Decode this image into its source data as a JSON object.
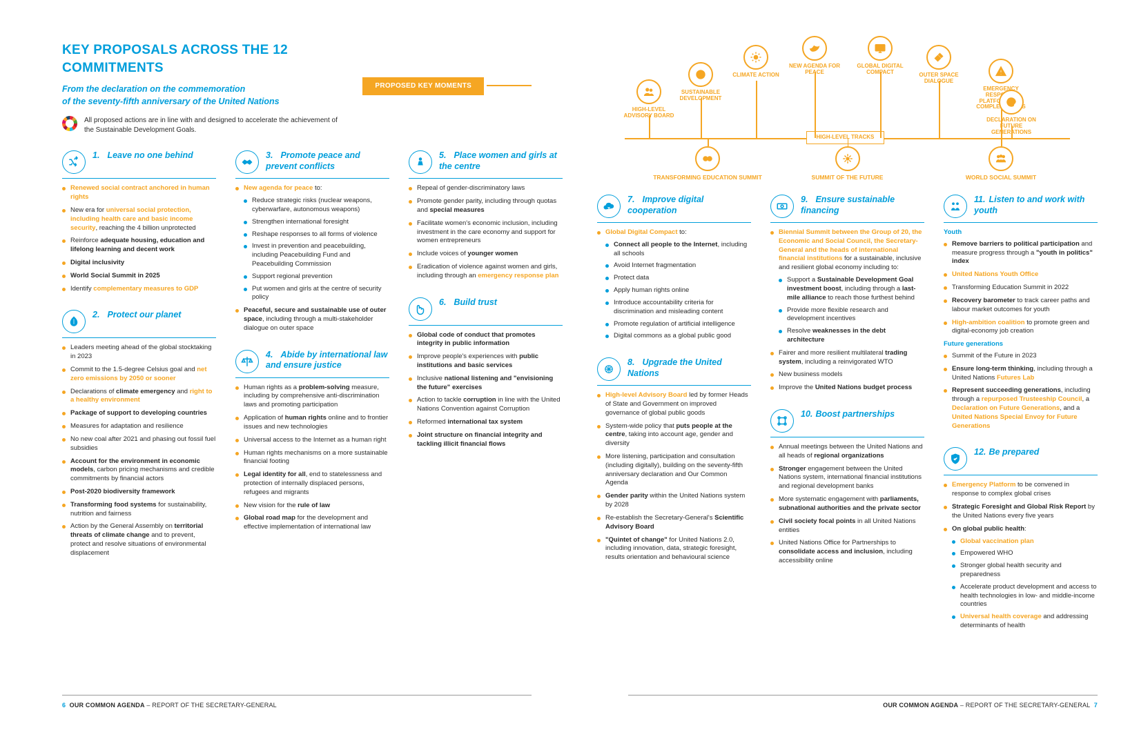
{
  "colors": {
    "blue": "#009edb",
    "orange": "#f5a623",
    "text": "#2a2a2a",
    "bg": "#ffffff"
  },
  "header": {
    "title": "KEY PROPOSALS ACROSS THE 12 COMMITMENTS",
    "subtitle_l1": "From the declaration on the commemoration",
    "subtitle_l2": "of the seventy-fifth anniversary of the United Nations",
    "sdg_note": "All proposed actions are in line with and designed to accelerate the achievement of the Sustainable Development Goals.",
    "moments_label": "PROPOSED KEY MOMENTS"
  },
  "diagram": {
    "track_label": "HIGH-LEVEL TRACKS",
    "top_nodes": [
      {
        "label": "HIGH-LEVEL ADVISORY BOARD",
        "icon": "people"
      },
      {
        "label": "SUSTAINABLE DEVELOPMENT",
        "icon": "globe"
      },
      {
        "label": "CLIMATE ACTION",
        "icon": "sun"
      },
      {
        "label": "NEW AGENDA FOR PEACE",
        "icon": "dove"
      },
      {
        "label": "GLOBAL DIGITAL COMPACT",
        "icon": "screen"
      },
      {
        "label": "OUTER SPACE DIALOGUE",
        "icon": "satellite"
      },
      {
        "label": "EMERGENCY RESPONSE PLATFORM FOR COMPLEX CRISES",
        "icon": "alert"
      },
      {
        "label": "DECLARATION ON FUTURE GENERATIONS",
        "icon": "cycle"
      }
    ],
    "bottom_nodes": [
      {
        "label": "TRANSFORMING EDUCATION SUMMIT",
        "icon": "link"
      },
      {
        "label": "SUMMIT OF THE FUTURE",
        "icon": "burst"
      },
      {
        "label": "WORLD SOCIAL SUMMIT",
        "icon": "group"
      }
    ]
  },
  "commitments": [
    {
      "num": "1.",
      "title": "Leave no one behind",
      "icon": "shuffle",
      "items": [
        {
          "html": "<span class='orange'>Renewed social contract anchored in human rights</span>"
        },
        {
          "html": "New era for <span class='orange'>universal social protection, including health care and basic income security</span>, reaching the 4 billion unprotected"
        },
        {
          "html": "Reinforce <b>adequate housing, education and lifelong learning and decent work</b>"
        },
        {
          "html": "<b>Digital inclusivity</b>"
        },
        {
          "html": "<b>World Social Summit in 2025</b>"
        },
        {
          "html": "Identify <span class='orange'>complementary measures to GDP</span>"
        }
      ]
    },
    {
      "num": "2.",
      "title": "Protect our planet",
      "icon": "leaf",
      "items": [
        {
          "html": "Leaders meeting ahead of the global stocktaking in 2023"
        },
        {
          "html": "Commit to the 1.5-degree Celsius goal and <span class='orange'>net zero emissions by 2050 or sooner</span>"
        },
        {
          "html": "Declarations of <b>climate emergency</b> and <span class='orange'>right to a healthy environment</span>"
        },
        {
          "html": "<b>Package of support to developing countries</b>"
        },
        {
          "html": "Measures for adaptation and resilience"
        },
        {
          "html": "No new coal after 2021 and phasing out fossil fuel subsidies"
        },
        {
          "html": "<b>Account for the environment in economic models</b>, carbon pricing mechanisms and credible commitments by financial actors"
        },
        {
          "html": "<b>Post-2020 biodiversity framework</b>"
        },
        {
          "html": "<b>Transforming food systems</b> for sustainability, nutrition and fairness"
        },
        {
          "html": "Action by the General Assembly on <b>territorial threats of climate change</b> and to prevent, protect and resolve situations of environmental displacement"
        }
      ]
    },
    {
      "num": "3.",
      "title": "Promote peace and prevent conflicts",
      "icon": "handshake",
      "items": [
        {
          "html": "<span class='orange'>New agenda for peace</span> to:",
          "sub": [
            {
              "html": "Reduce strategic risks (nuclear weapons, cyberwarfare, autonomous weapons)"
            },
            {
              "html": "Strengthen international foresight"
            },
            {
              "html": "Reshape responses to all forms of violence"
            },
            {
              "html": "Invest in prevention and peacebuilding, including Peacebuilding Fund and Peacebuilding Commission"
            },
            {
              "html": "Support regional prevention"
            },
            {
              "html": "Put women and girls at the centre of security policy"
            }
          ]
        },
        {
          "html": "<b>Peaceful, secure and sustainable use of outer space</b>, including through a multi-stakeholder dialogue on outer space"
        }
      ]
    },
    {
      "num": "4.",
      "title": "Abide by international law and ensure justice",
      "icon": "scale",
      "items": [
        {
          "html": "Human rights as a <b>problem-solving</b> measure, including by comprehensive anti-discrimination laws and promoting participation"
        },
        {
          "html": "Application of <b>human rights</b> online and to frontier issues and new technologies"
        },
        {
          "html": "Universal access to the Internet as a human right"
        },
        {
          "html": "Human rights mechanisms on a more sustainable financial footing"
        },
        {
          "html": "<b>Legal identity for all</b>, end to statelessness and protection of internally displaced persons, refugees and migrants"
        },
        {
          "html": "New vision for the <b>rule of law</b>"
        },
        {
          "html": "<b>Global road map</b> for the development and effective implementation of international law"
        }
      ]
    },
    {
      "num": "5.",
      "title": "Place women and girls at the centre",
      "icon": "female",
      "items": [
        {
          "html": "Repeal of gender-discriminatory laws"
        },
        {
          "html": "Promote gender parity, including through quotas and <b>special measures</b>"
        },
        {
          "html": "Facilitate women's economic inclusion, including investment in the care economy and support for women entrepreneurs"
        },
        {
          "html": "Include voices of <b>younger women</b>"
        },
        {
          "html": "Eradication of violence against women and girls, including through an <span class='orange'>emergency response plan</span>"
        }
      ]
    },
    {
      "num": "6.",
      "title": "Build trust",
      "icon": "hand",
      "items": [
        {
          "html": "<b>Global code of conduct that promotes integrity in public information</b>"
        },
        {
          "html": "Improve people's experiences with <b>public institutions and basic services</b>"
        },
        {
          "html": "Inclusive <b>national listening and \"envisioning the future\" exercises</b>"
        },
        {
          "html": "Action to tackle <b>corruption</b> in line with the United Nations Convention against Corruption"
        },
        {
          "html": "Reformed <b>international tax system</b>"
        },
        {
          "html": "<b>Joint structure on financial integrity and tackling illicit financial flows</b>"
        }
      ]
    },
    {
      "num": "7.",
      "title": "Improve digital cooperation",
      "icon": "cloud",
      "items": [
        {
          "html": "<span class='orange'>Global Digital Compact</span> to:",
          "sub": [
            {
              "html": "<b>Connect all people to the Internet</b>, including all schools"
            },
            {
              "html": "Avoid Internet fragmentation"
            },
            {
              "html": "Protect data"
            },
            {
              "html": "Apply human rights online"
            },
            {
              "html": "Introduce accountability criteria for discrimination and misleading content"
            },
            {
              "html": "Promote regulation of artificial intelligence"
            },
            {
              "html": "Digital commons as a global public good"
            }
          ]
        }
      ]
    },
    {
      "num": "8.",
      "title": "Upgrade the United Nations",
      "icon": "un",
      "items": [
        {
          "html": "<span class='orange'>High-level Advisory Board</span> led by former Heads of State and Government on improved governance of global public goods"
        },
        {
          "html": "System-wide policy that <b>puts people at the centre</b>, taking into account age, gender and diversity"
        },
        {
          "html": "More listening, participation and consultation (including digitally), building on the seventy-fifth anniversary declaration and Our Common Agenda"
        },
        {
          "html": "<b>Gender parity</b> within the United Nations system by 2028"
        },
        {
          "html": "Re-establish the Secretary-General's <b>Scientific Advisory Board</b>"
        },
        {
          "html": "<b>\"Quintet of change\"</b> for United Nations 2.0, including innovation, data, strategic foresight, results orientation and behavioural science"
        }
      ]
    },
    {
      "num": "9.",
      "title": "Ensure sustainable financing",
      "icon": "money",
      "items": [
        {
          "html": "<span class='orange'>Biennial Summit between the Group of 20, the Economic and Social Council, the Secretary-General and the heads of international financial institutions</span> for a sustainable, inclusive and resilient global economy including to:",
          "sub": [
            {
              "html": "Support a <b>Sustainable Development Goal investment boost</b>, including through a <b>last-mile alliance</b> to reach those furthest behind"
            },
            {
              "html": "Provide more flexible research and development incentives"
            },
            {
              "html": "Resolve <b>weaknesses in the debt architecture</b>"
            }
          ]
        },
        {
          "html": "Fairer and more resilient multilateral <b>trading system</b>, including a reinvigorated WTO"
        },
        {
          "html": "New business models"
        },
        {
          "html": "Improve the <b>United Nations budget process</b>"
        }
      ]
    },
    {
      "num": "10.",
      "title": "Boost partnerships",
      "icon": "network",
      "items": [
        {
          "html": "Annual meetings between the United Nations and all heads of <b>regional organizations</b>"
        },
        {
          "html": "<b>Stronger</b> engagement between the United Nations system, international financial institutions and regional development banks"
        },
        {
          "html": "More systematic engagement with <b>parliaments, subnational authorities and the private sector</b>"
        },
        {
          "html": "<b>Civil society focal points</b> in all United Nations entities"
        },
        {
          "html": "United Nations Office for Partnerships to <b>consolidate access and inclusion</b>, including accessibility online"
        }
      ]
    },
    {
      "num": "11.",
      "title": "Listen to and work with youth",
      "icon": "youth",
      "sections": [
        {
          "heading": "Youth",
          "items": [
            {
              "html": "<b>Remove barriers to political participation</b> and measure progress through a <b>\"youth in politics\" index</b>"
            },
            {
              "html": "<span class='orange'>United Nations Youth Office</span>"
            },
            {
              "html": "Transforming Education Summit in 2022"
            },
            {
              "html": "<b>Recovery barometer</b> to track career paths and labour market outcomes for youth"
            },
            {
              "html": "<span class='orange'>High-ambition coalition</span> to promote green and digital-economy job creation"
            }
          ]
        },
        {
          "heading": "Future generations",
          "items": [
            {
              "html": "Summit of the Future in 2023"
            },
            {
              "html": "<b>Ensure long-term thinking</b>, including through a United Nations <span class='orange'>Futures Lab</span>"
            },
            {
              "html": "<b>Represent succeeding generations</b>, including through a <span class='orange'>repurposed Trusteeship Council</span>, a <span class='orange'>Declaration on Future Generations</span>, and a <span class='orange'>United Nations Special Envoy for Future Generations</span>"
            }
          ]
        }
      ]
    },
    {
      "num": "12.",
      "title": "Be prepared",
      "icon": "shield",
      "items": [
        {
          "html": "<span class='orange'>Emergency Platform</span> to be convened in response to complex global crises"
        },
        {
          "html": "<b>Strategic Foresight and Global Risk Report</b> by the United Nations every five years"
        },
        {
          "html": "<b>On global public health</b>:",
          "sub": [
            {
              "html": "<span class='orange'>Global vaccination plan</span>"
            },
            {
              "html": "Empowered WHO"
            },
            {
              "html": "Stronger global health security and preparedness"
            },
            {
              "html": "Accelerate product development and access to health technologies in low- and middle-income countries"
            },
            {
              "html": "<span class='orange'>Universal health coverage</span> and addressing determinants of health"
            }
          ]
        }
      ]
    }
  ],
  "footer": {
    "left_page": "6",
    "right_page": "7",
    "doc_title": "OUR COMMON AGENDA",
    "doc_sub": " – REPORT OF THE SECRETARY-GENERAL"
  }
}
